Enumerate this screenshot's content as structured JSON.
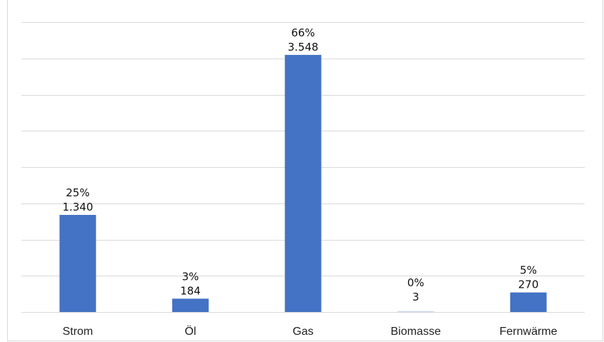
{
  "chart_data": {
    "type": "bar",
    "categories": [
      "Strom",
      "Öl",
      "Gas",
      "Biomasse",
      "Fernwärme"
    ],
    "values": [
      1340,
      184,
      3548,
      3,
      270
    ],
    "value_labels": [
      "1.340",
      "184",
      "3.548",
      "3",
      "270"
    ],
    "percent_labels": [
      "25%",
      "3%",
      "66%",
      "0%",
      "5%"
    ],
    "title": "",
    "xlabel": "",
    "ylabel": "",
    "ylim": [
      0,
      4000
    ],
    "grid": true,
    "legend": "none",
    "bar_color": "#4472c4",
    "grid_color": "#d9d9d9"
  }
}
